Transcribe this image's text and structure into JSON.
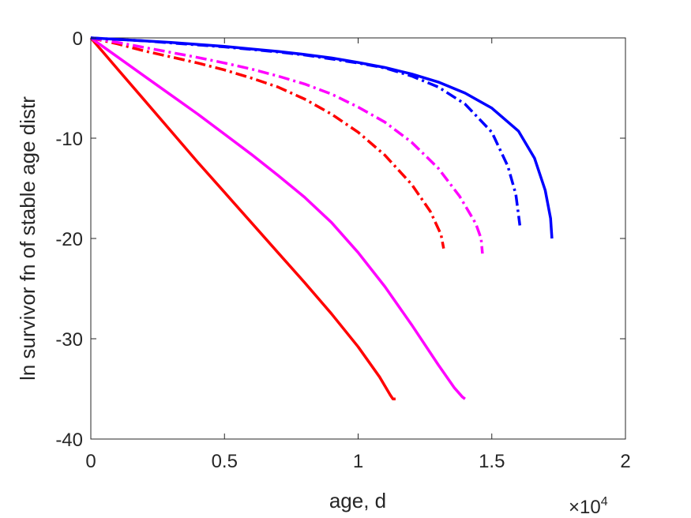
{
  "chart_data": {
    "type": "line",
    "xlabel": "age, d",
    "ylabel": "ln survivor fn of stable age distr",
    "x_exponent_label": "×10",
    "x_exponent_power": "4",
    "xlim": [
      0,
      20000
    ],
    "ylim": [
      -40,
      0
    ],
    "xticks": [
      0,
      5000,
      10000,
      15000,
      20000
    ],
    "xtick_labels": [
      "0",
      "0.5",
      "1",
      "1.5",
      "2"
    ],
    "yticks": [
      0,
      -10,
      -20,
      -30,
      -40
    ],
    "ytick_labels": [
      "0",
      "-10",
      "-20",
      "-30",
      "-40"
    ],
    "grid": false,
    "legend": "none",
    "series": [
      {
        "color": "#ff0000",
        "style": "solid",
        "points": [
          [
            0,
            0
          ],
          [
            1000,
            -3.1
          ],
          [
            2000,
            -6.2
          ],
          [
            3000,
            -9.3
          ],
          [
            4000,
            -12.4
          ],
          [
            5000,
            -15.4
          ],
          [
            6000,
            -18.4
          ],
          [
            7000,
            -21.4
          ],
          [
            8000,
            -24.4
          ],
          [
            9000,
            -27.5
          ],
          [
            10000,
            -30.8
          ],
          [
            10800,
            -33.8
          ],
          [
            11200,
            -35.6
          ],
          [
            11300,
            -36
          ],
          [
            11400,
            -36
          ]
        ]
      },
      {
        "color": "#ff00ff",
        "style": "solid",
        "points": [
          [
            0,
            0
          ],
          [
            1000,
            -1.9
          ],
          [
            2000,
            -3.8
          ],
          [
            3000,
            -5.7
          ],
          [
            4000,
            -7.6
          ],
          [
            5000,
            -9.6
          ],
          [
            6000,
            -11.6
          ],
          [
            7000,
            -13.7
          ],
          [
            8000,
            -15.9
          ],
          [
            9000,
            -18.4
          ],
          [
            10000,
            -21.4
          ],
          [
            11000,
            -24.8
          ],
          [
            12000,
            -28.6
          ],
          [
            13000,
            -32.6
          ],
          [
            13600,
            -34.9
          ],
          [
            13900,
            -35.8
          ],
          [
            14000,
            -36
          ]
        ]
      },
      {
        "color": "#ff0000",
        "style": "dashdot",
        "points": [
          [
            0,
            0
          ],
          [
            1000,
            -0.6
          ],
          [
            2000,
            -1.3
          ],
          [
            3000,
            -1.9
          ],
          [
            4000,
            -2.5
          ],
          [
            5000,
            -3.2
          ],
          [
            6000,
            -4.0
          ],
          [
            7000,
            -4.9
          ],
          [
            8000,
            -6.1
          ],
          [
            9000,
            -7.6
          ],
          [
            10000,
            -9.4
          ],
          [
            11000,
            -11.7
          ],
          [
            12000,
            -14.6
          ],
          [
            12700,
            -17.3
          ],
          [
            13100,
            -19.6
          ],
          [
            13200,
            -21
          ]
        ]
      },
      {
        "color": "#ff00ff",
        "style": "dashdot",
        "points": [
          [
            0,
            0
          ],
          [
            1000,
            -0.45
          ],
          [
            2000,
            -0.95
          ],
          [
            3000,
            -1.45
          ],
          [
            4000,
            -1.95
          ],
          [
            5000,
            -2.5
          ],
          [
            6000,
            -3.1
          ],
          [
            7000,
            -3.8
          ],
          [
            8000,
            -4.6
          ],
          [
            9000,
            -5.6
          ],
          [
            10000,
            -6.9
          ],
          [
            11000,
            -8.4
          ],
          [
            12000,
            -10.4
          ],
          [
            13000,
            -13.0
          ],
          [
            13800,
            -15.8
          ],
          [
            14400,
            -18.5
          ],
          [
            14600,
            -20
          ],
          [
            14650,
            -21.5
          ]
        ]
      },
      {
        "color": "#0000ff",
        "style": "dashdot",
        "points": [
          [
            0,
            0
          ],
          [
            1000,
            -0.15
          ],
          [
            2000,
            -0.3
          ],
          [
            3000,
            -0.5
          ],
          [
            4000,
            -0.7
          ],
          [
            5000,
            -0.9
          ],
          [
            6000,
            -1.15
          ],
          [
            7000,
            -1.4
          ],
          [
            8000,
            -1.7
          ],
          [
            9000,
            -2.1
          ],
          [
            10000,
            -2.5
          ],
          [
            11000,
            -3.0
          ],
          [
            12000,
            -3.8
          ],
          [
            13000,
            -4.9
          ],
          [
            14000,
            -6.6
          ],
          [
            15000,
            -9.4
          ],
          [
            15600,
            -12.8
          ],
          [
            15900,
            -15.6
          ],
          [
            16050,
            -18.7
          ]
        ]
      },
      {
        "color": "#0000ff",
        "style": "solid",
        "points": [
          [
            0,
            0
          ],
          [
            1000,
            -0.15
          ],
          [
            2000,
            -0.3
          ],
          [
            3000,
            -0.45
          ],
          [
            4000,
            -0.65
          ],
          [
            5000,
            -0.85
          ],
          [
            6000,
            -1.1
          ],
          [
            7000,
            -1.35
          ],
          [
            8000,
            -1.65
          ],
          [
            9000,
            -2.0
          ],
          [
            10000,
            -2.45
          ],
          [
            11000,
            -2.95
          ],
          [
            12000,
            -3.6
          ],
          [
            13000,
            -4.4
          ],
          [
            14000,
            -5.5
          ],
          [
            15000,
            -7.0
          ],
          [
            16000,
            -9.3
          ],
          [
            16600,
            -12.0
          ],
          [
            17000,
            -15.2
          ],
          [
            17200,
            -18.0
          ],
          [
            17250,
            -20
          ]
        ]
      }
    ]
  }
}
